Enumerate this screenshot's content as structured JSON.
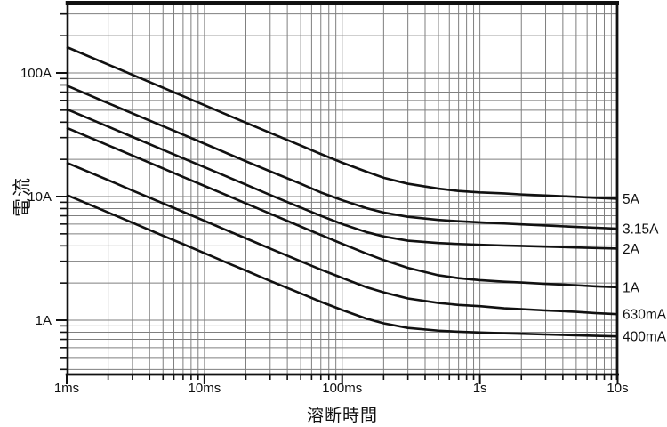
{
  "figure": {
    "background": "#ffffff",
    "line_color": "#111111",
    "grid_color": "#7f7f7f",
    "x_axis_title": "溶断時間",
    "y_axis_title": "電流"
  },
  "chart_data": {
    "type": "line",
    "title": "",
    "xlabel": "溶断時間",
    "ylabel": "電流",
    "x_axis": {
      "scale": "log",
      "unit": "ms",
      "range_ms": [
        1,
        10000
      ],
      "grid": true,
      "major_ticks": [
        {
          "ms": 1,
          "label": "1ms"
        },
        {
          "ms": 10,
          "label": "10ms"
        },
        {
          "ms": 100,
          "label": "100ms"
        },
        {
          "ms": 1000,
          "label": "1s"
        },
        {
          "ms": 10000,
          "label": "10s"
        }
      ]
    },
    "y_axis": {
      "scale": "log",
      "unit": "A",
      "range_a": [
        0.364,
        364
      ],
      "grid": true,
      "major_ticks": [
        {
          "amps": 1,
          "label": "1A"
        },
        {
          "amps": 10,
          "label": "10A"
        },
        {
          "amps": 100,
          "label": "100A"
        }
      ]
    },
    "legend_position": "right-edge-labels",
    "t_ms": [
      1,
      2,
      3,
      5,
      7,
      10,
      15,
      20,
      30,
      50,
      70,
      100,
      150,
      200,
      300,
      500,
      700,
      1000,
      1500,
      2000,
      3000,
      5000,
      7000,
      10000
    ],
    "series": [
      {
        "name": "5A",
        "label": "5A",
        "values": [
          162,
          117,
          96.6,
          76,
          64.9,
          54.9,
          45.3,
          39.6,
          32.8,
          25.9,
          22.1,
          18.8,
          15.9,
          14.2,
          12.7,
          11.6,
          11.1,
          10.8,
          10.6,
          10.4,
          10.2,
          9.95,
          9.77,
          9.6
        ]
      },
      {
        "name": "3.15A",
        "label": "3.15A",
        "values": [
          79,
          57,
          47.1,
          37.1,
          31.7,
          26.8,
          22.1,
          19.3,
          16,
          12.7,
          10.8,
          9.35,
          8.06,
          7.43,
          6.87,
          6.48,
          6.32,
          6.19,
          6.06,
          5.97,
          5.84,
          5.69,
          5.6,
          5.5
        ]
      },
      {
        "name": "2A",
        "label": "2A",
        "values": [
          51,
          36.8,
          30.4,
          23.9,
          20.4,
          17.3,
          14.3,
          12.5,
          10.3,
          8.15,
          7.0,
          6.0,
          5.16,
          4.76,
          4.4,
          4.21,
          4.14,
          4.08,
          4.02,
          3.99,
          3.94,
          3.88,
          3.84,
          3.8
        ]
      },
      {
        "name": "1A",
        "label": "1A",
        "values": [
          36,
          26,
          21.5,
          16.9,
          14.4,
          12.2,
          10.1,
          8.81,
          7.28,
          5.73,
          4.9,
          4.15,
          3.46,
          3.07,
          2.65,
          2.31,
          2.19,
          2.11,
          2.05,
          2.02,
          1.97,
          1.92,
          1.88,
          1.85
        ]
      },
      {
        "name": "630mA",
        "label": "630mA",
        "values": [
          18.8,
          13.6,
          11.2,
          8.82,
          7.53,
          6.37,
          5.26,
          4.6,
          3.8,
          3.0,
          2.57,
          2.2,
          1.85,
          1.68,
          1.5,
          1.38,
          1.33,
          1.3,
          1.25,
          1.23,
          1.2,
          1.17,
          1.14,
          1.12
        ]
      },
      {
        "name": "400mA",
        "label": "400mA",
        "values": [
          10.3,
          7.44,
          6.15,
          4.83,
          4.13,
          3.49,
          2.88,
          2.52,
          2.08,
          1.65,
          1.41,
          1.21,
          1.03,
          0.944,
          0.866,
          0.823,
          0.807,
          0.795,
          0.784,
          0.777,
          0.767,
          0.756,
          0.748,
          0.74
        ]
      }
    ]
  }
}
